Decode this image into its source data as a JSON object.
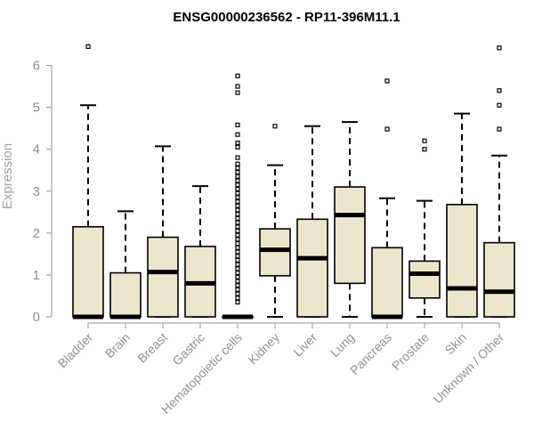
{
  "chart_data": {
    "type": "box",
    "title": "ENSG00000236562 - RP11-396M11.1",
    "xlabel": "",
    "ylabel": "Expression",
    "ylim": [
      0,
      6.5
    ],
    "yticks": [
      0,
      1,
      2,
      3,
      4,
      5,
      6
    ],
    "box_color": "#EDE6CF",
    "categories": [
      "Bladder",
      "Brain",
      "Breast",
      "Gastric",
      "Hematopoietic cells",
      "Kidney",
      "Liver",
      "Lung",
      "Pancreas",
      "Prostate",
      "Skin",
      "Unknown / Other"
    ],
    "boxes": [
      {
        "q1": 0,
        "median": 0,
        "q3": 2.15,
        "lower": 0,
        "upper": 5.05,
        "outliers": [
          6.45
        ]
      },
      {
        "q1": 0,
        "median": 0,
        "q3": 1.05,
        "lower": 0,
        "upper": 2.52,
        "outliers": []
      },
      {
        "q1": 0,
        "median": 1.07,
        "q3": 1.9,
        "lower": 0,
        "upper": 4.07,
        "outliers": []
      },
      {
        "q1": 0,
        "median": 0.8,
        "q3": 1.68,
        "lower": 0,
        "upper": 3.12,
        "outliers": []
      },
      {
        "q1": 0,
        "median": 0,
        "q3": 0,
        "lower": 0,
        "upper": 0,
        "outliers": [
          0.35,
          0.45,
          0.55,
          0.65,
          0.75,
          0.85,
          0.95,
          1.05,
          1.15,
          1.25,
          1.35,
          1.45,
          1.55,
          1.65,
          1.75,
          1.85,
          1.95,
          2.05,
          2.15,
          2.25,
          2.35,
          2.45,
          2.55,
          2.65,
          2.75,
          2.85,
          2.95,
          3.05,
          3.15,
          3.25,
          3.35,
          3.45,
          3.55,
          3.65,
          3.8,
          4.05,
          4.15,
          4.35,
          4.58,
          5.35,
          5.5,
          5.75
        ]
      },
      {
        "q1": 0.98,
        "median": 1.6,
        "q3": 2.1,
        "lower": 0,
        "upper": 3.62,
        "outliers": [
          4.55
        ]
      },
      {
        "q1": 0,
        "median": 1.4,
        "q3": 2.33,
        "lower": 0,
        "upper": 4.55,
        "outliers": []
      },
      {
        "q1": 0.8,
        "median": 2.43,
        "q3": 3.1,
        "lower": 0,
        "upper": 4.65,
        "outliers": []
      },
      {
        "q1": 0,
        "median": 0,
        "q3": 1.65,
        "lower": 0,
        "upper": 2.83,
        "outliers": [
          4.48,
          5.63
        ]
      },
      {
        "q1": 0.45,
        "median": 1.03,
        "q3": 1.33,
        "lower": 0,
        "upper": 2.77,
        "outliers": [
          4.0,
          4.2
        ]
      },
      {
        "q1": 0,
        "median": 0.68,
        "q3": 2.68,
        "lower": 0,
        "upper": 4.85,
        "outliers": []
      },
      {
        "q1": 0,
        "median": 0.6,
        "q3": 1.77,
        "lower": 0,
        "upper": 3.85,
        "outliers": [
          4.48,
          5.05,
          5.4,
          6.42
        ]
      }
    ]
  }
}
